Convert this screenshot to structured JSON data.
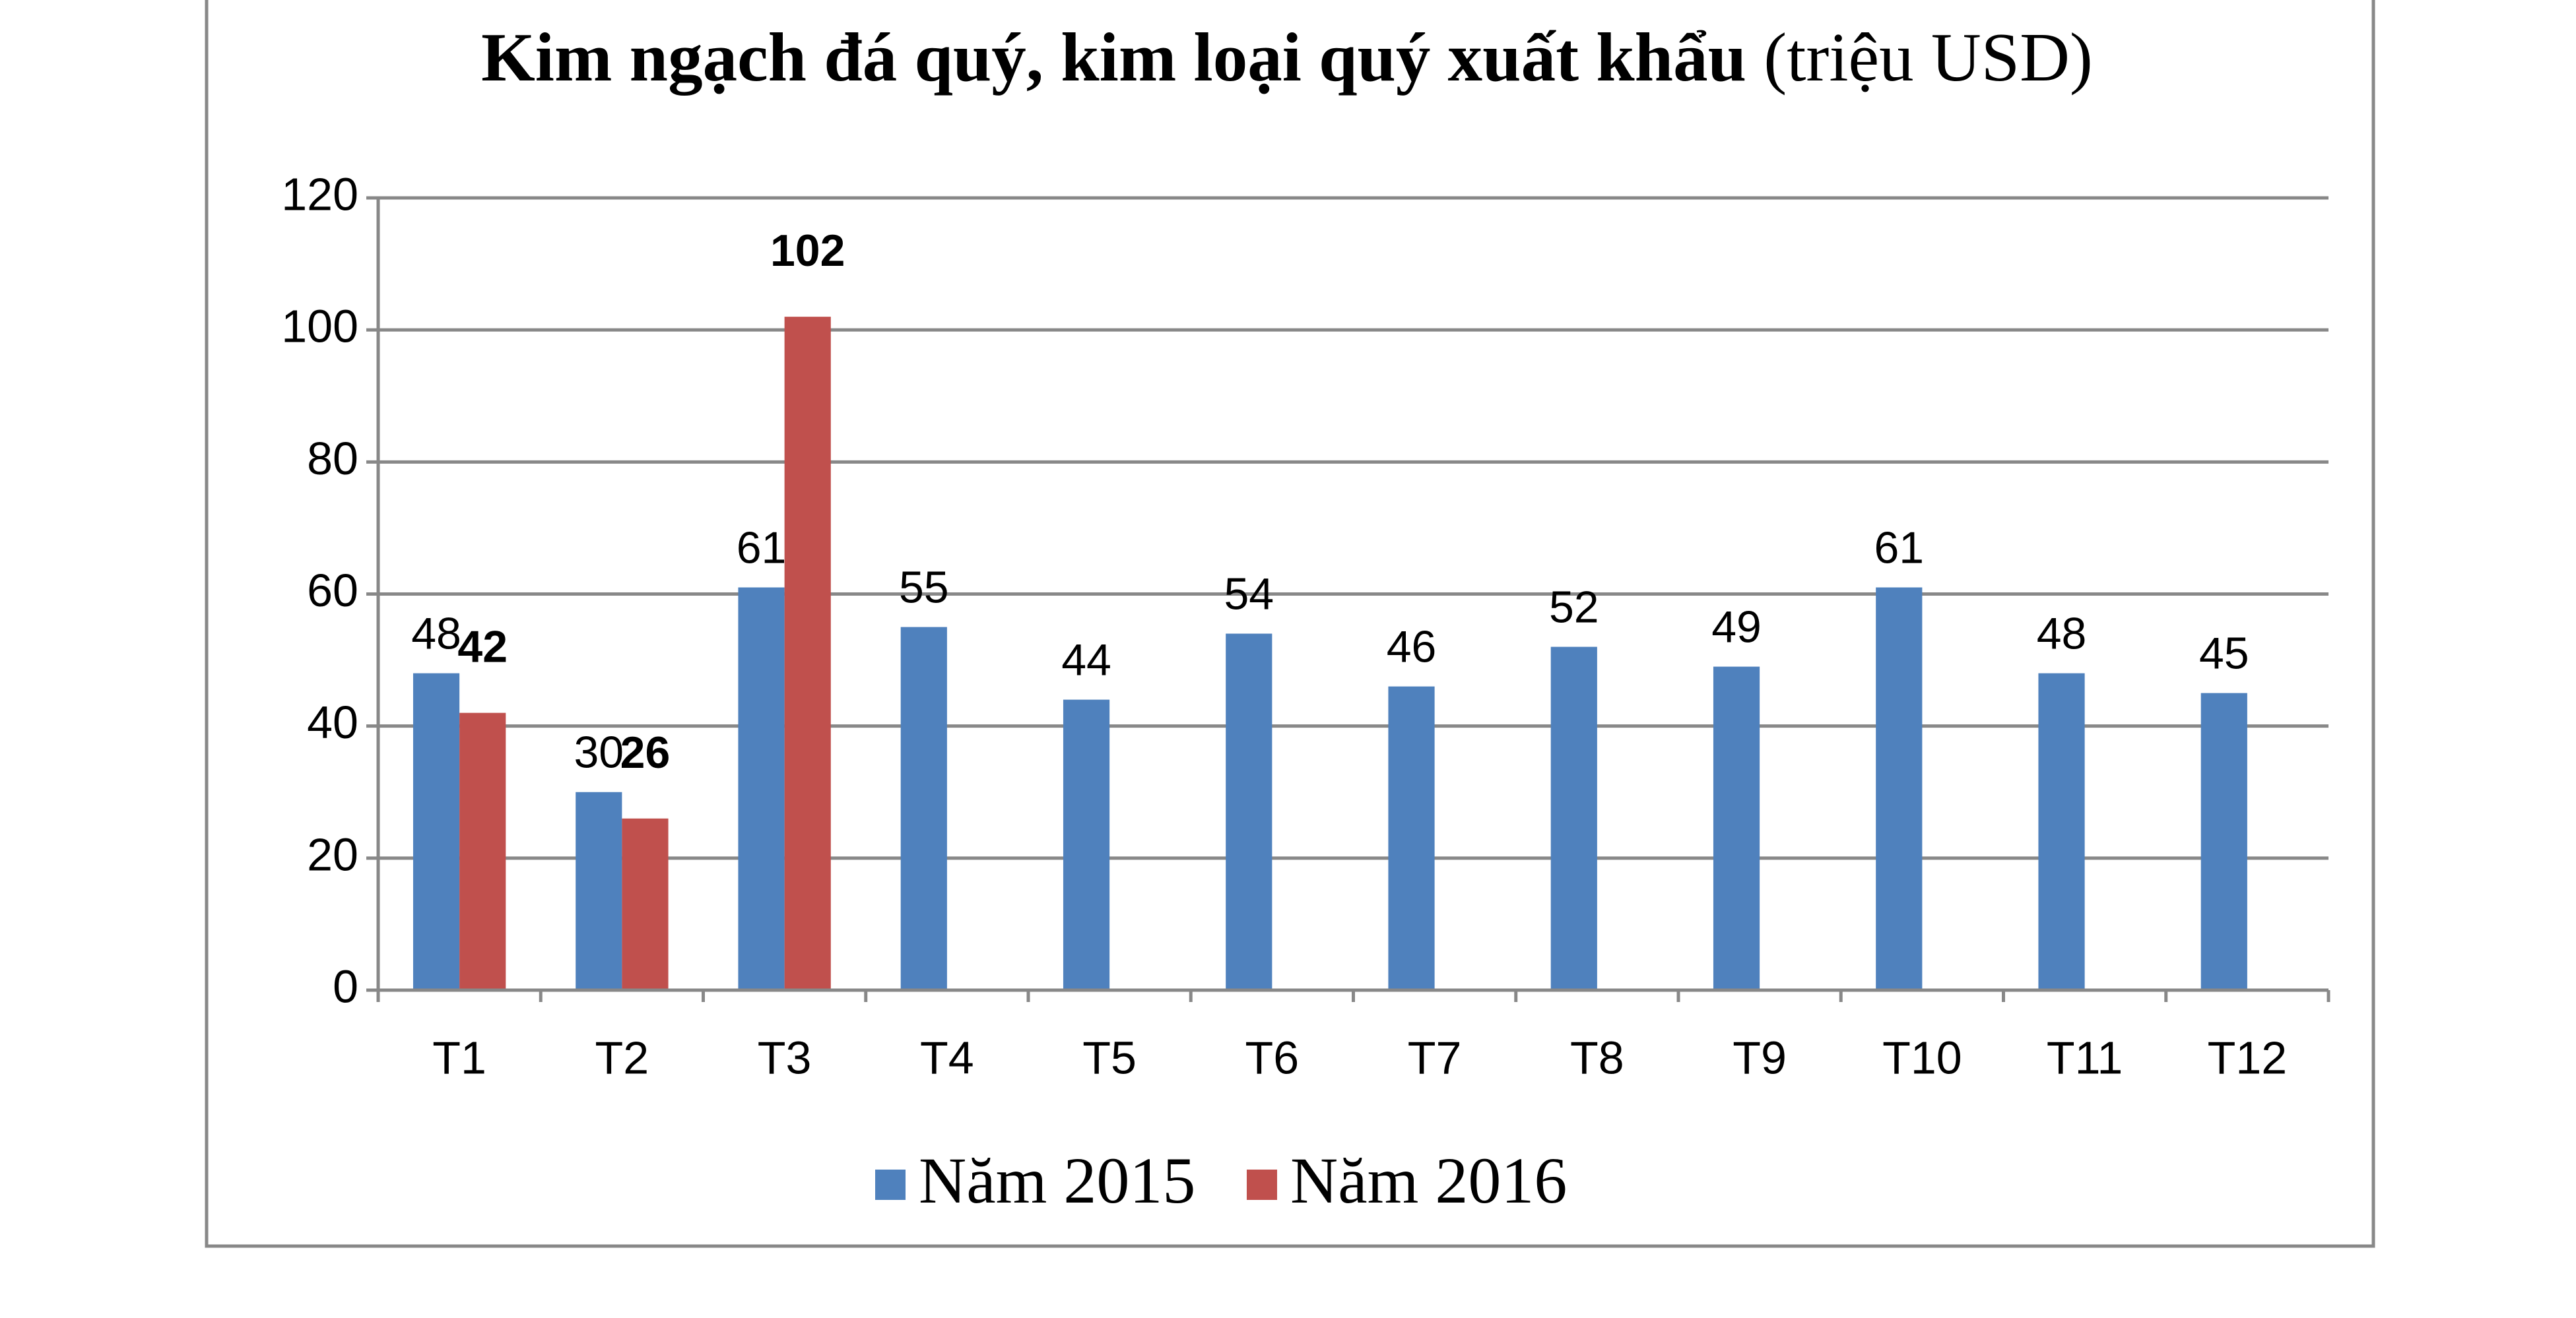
{
  "chart_data": {
    "type": "bar",
    "title": "Kim ngạch đá quý, kim loại quý xuất khẩu",
    "subtitle": "(triệu USD)",
    "categories": [
      "T1",
      "T2",
      "T3",
      "T4",
      "T5",
      "T6",
      "T7",
      "T8",
      "T9",
      "T10",
      "T11",
      "T12"
    ],
    "series": [
      {
        "name": "Năm 2015",
        "color": "#4f81bd",
        "values": [
          48,
          30,
          61,
          55,
          44,
          54,
          46,
          52,
          49,
          61,
          48,
          45
        ]
      },
      {
        "name": "Năm 2016",
        "color": "#c0504d",
        "values": [
          42,
          26,
          102,
          null,
          null,
          null,
          null,
          null,
          null,
          null,
          null,
          null
        ]
      }
    ],
    "ylim": [
      0,
      120
    ],
    "yticks": [
      0,
      20,
      40,
      60,
      80,
      100,
      120
    ],
    "grid": true,
    "legend": "bottom"
  }
}
